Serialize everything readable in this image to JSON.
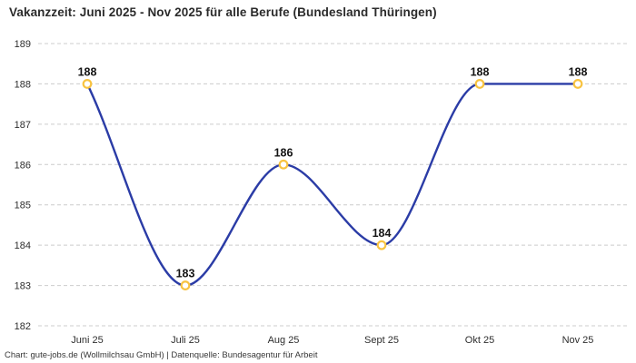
{
  "title": "Vakanzzeit: Juni 2025 - Nov 2025 für alle Berufe (Bundesland Thüringen)",
  "footer": "Chart: gute-jobs.de (Wollmilchsau GmbH) | Datenquelle: Bundesagentur für Arbeit",
  "chart_data": {
    "type": "line",
    "curve": "monotone-spline",
    "title": "Vakanzzeit: Juni 2025 - Nov 2025 für alle Berufe (Bundesland Thüringen)",
    "categories": [
      "Juni 25",
      "Juli 25",
      "Aug 25",
      "Sept 25",
      "Okt 25",
      "Nov 25"
    ],
    "values": [
      188,
      183,
      186,
      184,
      188,
      188
    ],
    "data_labels": [
      "188",
      "183",
      "186",
      "184",
      "188",
      "188"
    ],
    "xlabel": "",
    "ylabel": "",
    "ylim": [
      182,
      189
    ],
    "yticks": [
      182,
      183,
      184,
      185,
      186,
      187,
      188,
      189
    ],
    "grid": "horizontal-dashed",
    "legend": "none",
    "colors": {
      "line": "#2b3ca6",
      "marker_ring": "#f8c340",
      "marker_fill": "#ffffff",
      "grid": "#cccccc",
      "background": "#ffffff"
    }
  }
}
